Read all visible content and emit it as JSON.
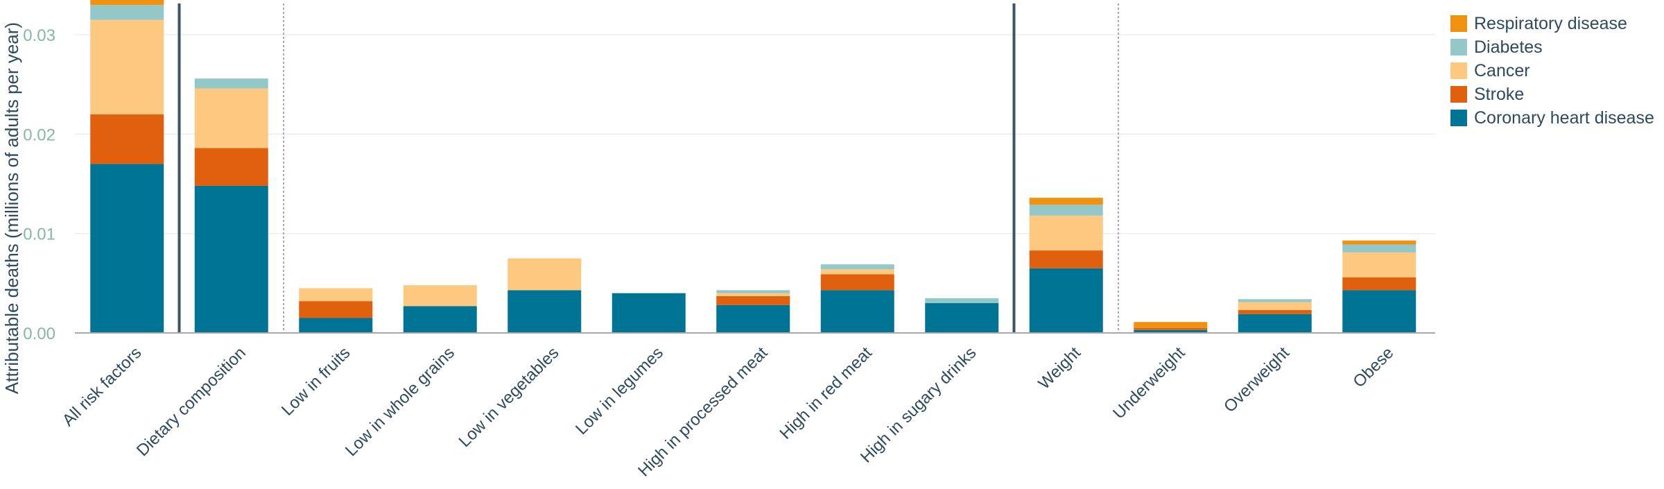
{
  "chart_data": {
    "type": "bar",
    "stacked": true,
    "title": "",
    "xlabel": "",
    "ylabel": "Attributable deaths (millions of adults per year)",
    "ylim": [
      0,
      0.0335
    ],
    "yticks": [
      0,
      0.01,
      0.02,
      0.03
    ],
    "ytick_labels": [
      "0.00",
      "0.01",
      "0.02",
      "0.03"
    ],
    "grid": true,
    "legend_position": "top-right",
    "categories": [
      "All risk factors",
      "Dietary composition",
      "Low in fruits",
      "Low in whole grains",
      "Low in vegetables",
      "Low in legumes",
      "High in processed meat",
      "High in red meat",
      "High in sugary drinks",
      "Weight",
      "Underweight",
      "Overweight",
      "Obese"
    ],
    "group_separators": [
      {
        "after_index": 0,
        "style": "solid"
      },
      {
        "after_index": 1,
        "style": "dotted"
      },
      {
        "after_index": 8,
        "style": "solid"
      },
      {
        "after_index": 9,
        "style": "dotted"
      }
    ],
    "series": [
      {
        "name": "Coronary heart disease",
        "color": "#007494",
        "values": [
          0.017,
          0.0148,
          0.0015,
          0.0027,
          0.0043,
          0.004,
          0.0028,
          0.0043,
          0.003,
          0.0065,
          0.0003,
          0.0019,
          0.0043
        ]
      },
      {
        "name": "Stroke",
        "color": "#e0600e",
        "values": [
          0.005,
          0.0038,
          0.0017,
          0.0,
          0.0,
          0.0,
          0.0009,
          0.0016,
          0.0,
          0.0018,
          0.0002,
          0.0004,
          0.0013
        ]
      },
      {
        "name": "Cancer",
        "color": "#fdc980",
        "values": [
          0.0095,
          0.006,
          0.0013,
          0.0021,
          0.0032,
          0.0,
          0.0003,
          0.0005,
          0.0,
          0.0035,
          0.0,
          0.0008,
          0.0025
        ]
      },
      {
        "name": "Diabetes",
        "color": "#94c8c8",
        "values": [
          0.0015,
          0.001,
          0.0,
          0.0,
          0.0,
          0.0,
          0.0003,
          0.0005,
          0.0005,
          0.0011,
          0.0,
          0.0003,
          0.0008
        ]
      },
      {
        "name": "Respiratory disease",
        "color": "#f09110",
        "values": [
          0.0008,
          0.0,
          0.0,
          0.0,
          0.0,
          0.0,
          0.0,
          0.0,
          0.0,
          0.0007,
          0.0006,
          0.0,
          0.0004
        ]
      }
    ],
    "legend_order": [
      "Respiratory disease",
      "Diabetes",
      "Cancer",
      "Stroke",
      "Coronary heart disease"
    ],
    "colors": {
      "tick_label": "#86b6a6",
      "category_label": "#2d4a5e",
      "axis_title": "#2d4a5e",
      "legend_text": "#2d4a5e",
      "grid": "#ececec",
      "baseline": "#a8a8a8",
      "separator_solid": "#3e5466",
      "separator_dotted": "#aaaaaa"
    }
  }
}
